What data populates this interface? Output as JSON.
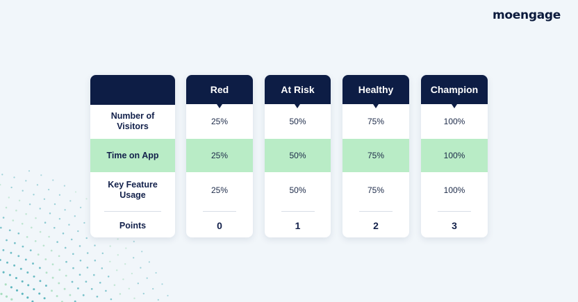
{
  "brand": {
    "logo_text": "moengage"
  },
  "table": {
    "row_labels": [
      "Number of Visitors",
      "Time on App",
      "Key Feature Usage",
      "Points"
    ],
    "columns": [
      {
        "name": "Red",
        "values": [
          "25%",
          "25%",
          "25%"
        ],
        "points": "0"
      },
      {
        "name": "At Risk",
        "values": [
          "50%",
          "50%",
          "50%"
        ],
        "points": "1"
      },
      {
        "name": "Healthy",
        "values": [
          "75%",
          "75%",
          "75%"
        ],
        "points": "2"
      },
      {
        "name": "Champion",
        "values": [
          "100%",
          "100%",
          "100%"
        ],
        "points": "3"
      }
    ]
  },
  "colors": {
    "header_navy": "#0d1d45",
    "highlight_row_green": "#b9ecc6",
    "background": "#f1f6fa",
    "dots_teal": "#3aa6b0",
    "dots_green": "#9ad9b4"
  }
}
